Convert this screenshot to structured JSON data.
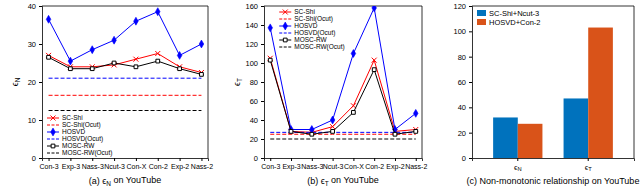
{
  "chart_data": [
    {
      "type": "line",
      "title": "(a) ϵN on YouTube",
      "ylabel": "ϵN",
      "categories": [
        "Con-3",
        "Exp-3",
        "Nass-3",
        "Ncut-3",
        "Con-X",
        "Con-2",
        "Exp-2",
        "Nass-2"
      ],
      "ylim": [
        0,
        40
      ],
      "yticks": [
        0,
        10,
        20,
        30,
        40
      ],
      "legend": "lower left",
      "series": [
        {
          "name": "SC-Shi",
          "color": "#ff0000",
          "marker": "x",
          "line_style": "solid",
          "values": [
            27,
            24,
            24,
            24.5,
            26,
            27.5,
            24,
            22.5
          ]
        },
        {
          "name": "SC-Shi(Ocut)",
          "color": "#ff0000",
          "marker": "none",
          "line_style": "dashed",
          "values": [
            16.5,
            16.5,
            16.5,
            16.5,
            16.5,
            16.5,
            16.5,
            16.5
          ]
        },
        {
          "name": "HOSVD",
          "color": "#0000ff",
          "marker": "diamond",
          "line_style": "solid",
          "values": [
            36.5,
            25.5,
            28.5,
            31,
            36,
            38.5,
            27,
            30
          ]
        },
        {
          "name": "HOSVD(Ocut)",
          "color": "#0000ff",
          "marker": "none",
          "line_style": "dashed",
          "values": [
            21,
            21,
            21,
            21,
            21,
            21,
            21,
            21
          ]
        },
        {
          "name": "MOSC-RW",
          "color": "#000000",
          "marker": "square",
          "line_style": "solid",
          "values": [
            26.5,
            23.5,
            23.5,
            25,
            24,
            25.5,
            23.5,
            22
          ]
        },
        {
          "name": "MOSC-RW(Ocut)",
          "color": "#000000",
          "marker": "none",
          "line_style": "dashed",
          "values": [
            12.5,
            12.5,
            12.5,
            12.5,
            12.5,
            12.5,
            12.5,
            12.5
          ]
        }
      ]
    },
    {
      "type": "line",
      "title": "(b) ϵT on YouTube",
      "ylabel": "ϵT",
      "categories": [
        "Con-3",
        "Exp-3",
        "Nass-3",
        "Ncut-3",
        "Con-X",
        "Con-2",
        "Exp-2",
        "Nass-2"
      ],
      "ylim": [
        0,
        160
      ],
      "yticks": [
        0,
        20,
        40,
        60,
        80,
        100,
        120,
        140,
        160
      ],
      "legend": "upper left",
      "series": [
        {
          "name": "SC-Shi",
          "color": "#ff0000",
          "marker": "x",
          "line_style": "solid",
          "values": [
            105,
            28,
            27,
            33,
            55,
            103,
            28,
            30
          ]
        },
        {
          "name": "SC-Shi(Ocut)",
          "color": "#ff0000",
          "marker": "none",
          "line_style": "dashed",
          "values": [
            25,
            25,
            25,
            25,
            25,
            25,
            25,
            25
          ]
        },
        {
          "name": "HOSVD",
          "color": "#0000ff",
          "marker": "diamond",
          "line_style": "solid",
          "values": [
            137,
            30,
            30,
            40,
            110,
            158,
            30,
            47
          ]
        },
        {
          "name": "HOSVD(Ocut)",
          "color": "#0000ff",
          "marker": "none",
          "line_style": "dashed",
          "values": [
            27,
            27,
            27,
            27,
            27,
            27,
            27,
            27
          ]
        },
        {
          "name": "MOSC-RW",
          "color": "#000000",
          "marker": "square",
          "line_style": "solid",
          "values": [
            103,
            28,
            25,
            28,
            48,
            93,
            25,
            28
          ]
        },
        {
          "name": "MOSC-RW(Ocut)",
          "color": "#000000",
          "marker": "none",
          "line_style": "dashed",
          "values": [
            20,
            20,
            20,
            20,
            20,
            20,
            20,
            20
          ]
        }
      ]
    },
    {
      "type": "bar",
      "title": "(c) Non-monotonic relationship on YouTube",
      "categories": [
        "ϵN",
        "ϵT"
      ],
      "ylim": [
        0,
        120
      ],
      "yticks": [
        0,
        20,
        40,
        60,
        80,
        100,
        120
      ],
      "legend": "upper left",
      "series": [
        {
          "name": "SC-Shi+Ncut-3",
          "color": "#0072bd",
          "values": [
            32,
            47
          ]
        },
        {
          "name": "HOSVD+Con-2",
          "color": "#d95319",
          "values": [
            27,
            103
          ]
        }
      ]
    }
  ]
}
